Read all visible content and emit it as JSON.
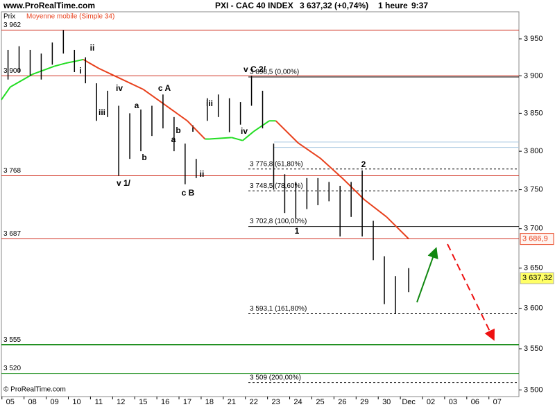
{
  "chart_data": {
    "type": "hilo",
    "site": "www.ProRealTime.com",
    "title": "PXI - CAC 40 INDEX",
    "quote": "3 637,32 (+0,74%)",
    "timeframe": "1 heure",
    "time": "9:37",
    "price_label": "Prix",
    "copyright": "© ProRealTime.com",
    "log_scale": true,
    "categories": [
      "05",
      "08",
      "09",
      "10",
      "11",
      "12",
      "15",
      "16",
      "17",
      "18",
      "21",
      "22",
      "23",
      "24",
      "25",
      "26",
      "29",
      "30",
      "Dec",
      "02",
      "03",
      "06",
      "07"
    ],
    "xlim": [
      -0.4,
      22.98
    ],
    "ylim": [
      3492,
      3987
    ],
    "yticks": [
      {
        "value": 3950,
        "label": "3 950"
      },
      {
        "value": 3900,
        "label": "3 900"
      },
      {
        "value": 3850,
        "label": "3 850"
      },
      {
        "value": 3800,
        "label": "3 800"
      },
      {
        "value": 3750,
        "label": "3 750"
      },
      {
        "value": 3700,
        "label": "3 700"
      },
      {
        "value": 3650,
        "label": "3 650"
      },
      {
        "value": 3600,
        "label": "3 600"
      },
      {
        "value": 3550,
        "label": "3 550"
      },
      {
        "value": 3500,
        "label": "3 500"
      }
    ],
    "bars": {
      "color": "#000000",
      "x": [
        -0.1,
        0.4,
        0.9,
        1.4,
        1.9,
        2.4,
        2.9,
        3.4,
        3.9,
        4.4,
        4.9,
        5.4,
        5.9,
        6.4,
        6.9,
        7.4,
        7.9,
        8.4,
        8.9,
        9.4,
        9.9,
        10.4,
        10.9,
        11.4,
        11.9,
        12.4,
        12.9,
        13.4,
        13.9,
        14.4,
        14.9,
        15.4,
        15.9,
        16.4,
        16.9,
        17.4,
        18.0
      ],
      "high": [
        3935,
        3940,
        3935,
        3930,
        3945,
        3962,
        3935,
        3925,
        3890,
        3880,
        3860,
        3850,
        3855,
        3860,
        3875,
        3845,
        3810,
        3790,
        3870,
        3875,
        3870,
        3865,
        3900,
        3880,
        3810,
        3770,
        3760,
        3765,
        3765,
        3760,
        3755,
        3760,
        3775,
        3710,
        3665,
        3640,
        3650
      ],
      "low": [
        3895,
        3905,
        3900,
        3895,
        3915,
        3930,
        3905,
        3890,
        3840,
        3845,
        3768,
        3790,
        3800,
        3820,
        3830,
        3800,
        3757,
        3765,
        3840,
        3845,
        3825,
        3835,
        3860,
        3830,
        3750,
        3720,
        3713,
        3725,
        3730,
        3735,
        3690,
        3715,
        3690,
        3660,
        3605,
        3593,
        3620
      ]
    },
    "moving_average": {
      "name": "Moyenne mobile (Simple 34)",
      "color": "#e8401c",
      "x": [
        -0.4,
        0,
        1,
        2,
        2.5,
        3,
        3.3,
        4,
        5,
        6,
        7,
        8,
        8.8,
        9,
        10,
        10.5,
        11,
        11.7,
        12,
        13,
        14,
        15,
        16,
        17,
        18
      ],
      "values": [
        3868,
        3885,
        3902,
        3913,
        3917,
        3920,
        3922,
        3910,
        3896,
        3882,
        3861,
        3840,
        3816,
        3816,
        3818,
        3814,
        3826,
        3840,
        3840,
        3811,
        3791,
        3765,
        3737,
        3715,
        3687
      ],
      "point_colors": [
        "#22dd22",
        "#22dd22",
        "#22dd22",
        "#22dd22",
        "#22dd22",
        "#22dd22",
        "#e8401c",
        "#e8401c",
        "#e8401c",
        "#e8401c",
        "#e8401c",
        "#e8401c",
        "#22dd22",
        "#22dd22",
        "#22dd22",
        "#22dd22",
        "#22dd22",
        "#22dd22",
        "#e8401c",
        "#e8401c",
        "#e8401c",
        "#e8401c",
        "#e8401c",
        "#e8401c",
        "#e8401c"
      ],
      "last": {
        "value": 3686.9,
        "label": "3 686,9"
      }
    },
    "last_price": {
      "value": 3637.32,
      "label": "3 637,32"
    },
    "levels": [
      {
        "value": 3962,
        "label": "3 962",
        "color": "#d03020",
        "width": 1
      },
      {
        "value": 3900,
        "label": "3 900",
        "color": "#d03020",
        "width": 1
      },
      {
        "value": 3768,
        "label": "3 768",
        "color": "#d03020",
        "width": 1
      },
      {
        "value": 3687,
        "label": "3 687",
        "color": "#d03020",
        "width": 1
      },
      {
        "value": 3555,
        "label": "3 555",
        "color": "#118811",
        "width": 2
      },
      {
        "value": 3520,
        "label": "3 520",
        "color": "#118811",
        "width": 1
      }
    ],
    "fibonacci": [
      {
        "value": 3898.5,
        "label": "3 898,5 (0,00%)",
        "dashed": false
      },
      {
        "value": 3776.8,
        "label": "3 776,8 (61,80%)",
        "dashed": true
      },
      {
        "value": 3748.5,
        "label": "3 748,5 (78,60%)",
        "dashed": true
      },
      {
        "value": 3702.8,
        "label": "3 702,8 (100,00%)",
        "dashed": false
      },
      {
        "value": 3593.1,
        "label": "3 593,1 (161,80%)",
        "dashed": true
      },
      {
        "value": 3509,
        "label": "3 509 (200,00%)",
        "dashed": true
      }
    ],
    "channel_lines": {
      "color": "#a8c8e0",
      "values": [
        3812,
        3805
      ]
    },
    "wave_labels": [
      "ii",
      "i",
      "iv",
      "iii",
      "a",
      "b",
      "v 1/",
      "c A",
      "b",
      "a",
      "i",
      "ii",
      "c B",
      "iii",
      "iv",
      "v C 2/",
      "1",
      "2"
    ]
  }
}
